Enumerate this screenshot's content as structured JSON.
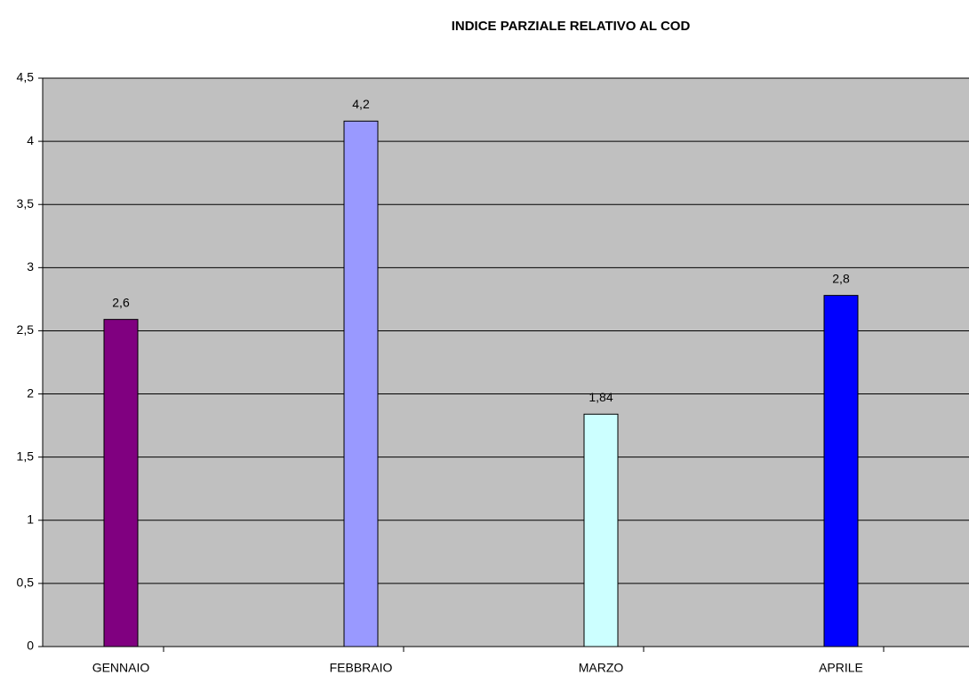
{
  "chart_data": {
    "type": "bar",
    "title": "INDICE PARZIALE RELATIVO AL COD",
    "categories": [
      "GENNAIO",
      "FEBBRAIO",
      "MARZO",
      "APRILE"
    ],
    "values": [
      2.59,
      4.16,
      1.84,
      2.78
    ],
    "value_labels": [
      "2,6",
      "4,2",
      "1,84",
      "2,8"
    ],
    "colors": [
      "#800080",
      "#9999ff",
      "#ccffff",
      "#0000ff"
    ],
    "ylim": [
      0,
      4.5
    ],
    "yticks": [
      0,
      {
        "value": 0.5,
        "label": "0,5"
      },
      1,
      {
        "value": 1.5,
        "label": "1,5"
      },
      2,
      {
        "value": 2.5,
        "label": "2,5"
      },
      3,
      {
        "value": 3.5,
        "label": "3,5"
      },
      4,
      {
        "value": 4.5,
        "label": "4,5"
      }
    ],
    "grid": true
  }
}
